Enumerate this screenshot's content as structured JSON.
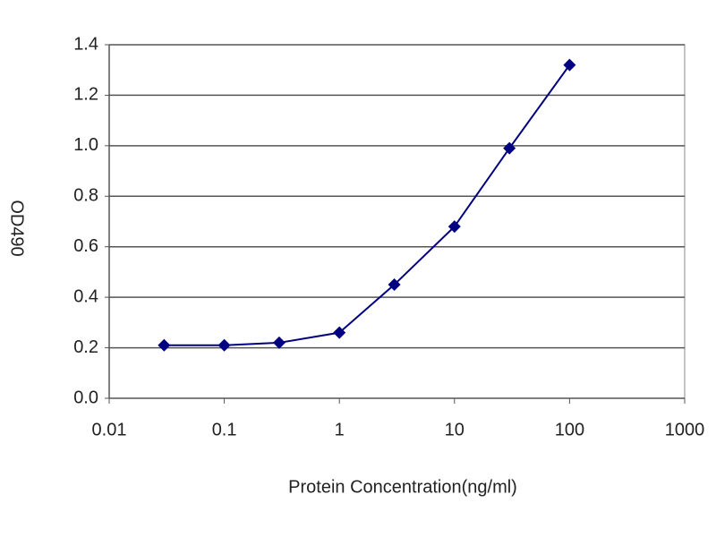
{
  "chart_data": {
    "type": "line",
    "x_label": "Protein Concentration(ng/ml)",
    "y_label": "OD490",
    "x": [
      0.03,
      0.1,
      0.3,
      1,
      3,
      10,
      30,
      100
    ],
    "series": [
      {
        "color": "#000080",
        "values": [
          0.21,
          0.21,
          0.22,
          0.26,
          0.45,
          0.68,
          0.99,
          1.32
        ]
      }
    ],
    "xscale": "log",
    "xlim": [
      0.01,
      1000
    ],
    "xticks": [
      0.01,
      0.1,
      1,
      10,
      100,
      1000
    ],
    "ylim": [
      0,
      1.4
    ],
    "yticks": [
      {
        "value": 0,
        "label": "0.0"
      },
      0.2,
      0.4,
      0.6,
      0.8,
      {
        "value": 1,
        "label": "1.0"
      },
      1.2,
      1.4
    ],
    "grid": true
  }
}
